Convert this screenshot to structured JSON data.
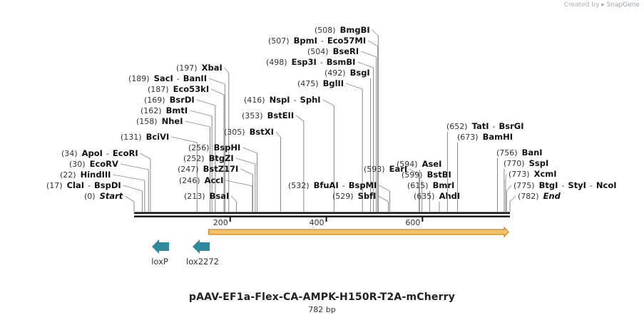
{
  "credit": {
    "prefix": "Created by",
    "brand": "SnapGene"
  },
  "map": {
    "title": "pAAV-EF1a-Flex-CA-AMPK-H150R-T2A-mCherry",
    "length_label": "782 bp",
    "length_bp": 782,
    "scale_ticks": [
      "200",
      "400",
      "600"
    ],
    "colors": {
      "arrow_fill": "#f5c26b",
      "arrow_stroke": "#c48a1c",
      "feature": "#2e8a9a",
      "line": "#888888",
      "backbone": "#111111"
    }
  },
  "sites": [
    {
      "pos_label": "(0)",
      "names": [
        "Start"
      ],
      "pos": 0,
      "italic": true
    },
    {
      "pos_label": "(17)",
      "names": [
        "ClaI",
        "BspDI"
      ],
      "pos": 17
    },
    {
      "pos_label": "(22)",
      "names": [
        "HindIII"
      ],
      "pos": 22
    },
    {
      "pos_label": "(30)",
      "names": [
        "EcoRV"
      ],
      "pos": 30
    },
    {
      "pos_label": "(34)",
      "names": [
        "ApoI",
        "EcoRI"
      ],
      "pos": 34
    },
    {
      "pos_label": "(131)",
      "names": [
        "BciVI"
      ],
      "pos": 131
    },
    {
      "pos_label": "(158)",
      "names": [
        "NheI"
      ],
      "pos": 158
    },
    {
      "pos_label": "(162)",
      "names": [
        "BmtI"
      ],
      "pos": 162
    },
    {
      "pos_label": "(169)",
      "names": [
        "BsrDI"
      ],
      "pos": 169
    },
    {
      "pos_label": "(187)",
      "names": [
        "Eco53kI"
      ],
      "pos": 187
    },
    {
      "pos_label": "(189)",
      "names": [
        "SacI",
        "BanII"
      ],
      "pos": 189
    },
    {
      "pos_label": "(197)",
      "names": [
        "XbaI"
      ],
      "pos": 197
    },
    {
      "pos_label": "(213)",
      "names": [
        "BsaI"
      ],
      "pos": 213
    },
    {
      "pos_label": "(246)",
      "names": [
        "AccI"
      ],
      "pos": 246
    },
    {
      "pos_label": "(247)",
      "names": [
        "BstZ17I"
      ],
      "pos": 247
    },
    {
      "pos_label": "(252)",
      "names": [
        "BtgZI"
      ],
      "pos": 252
    },
    {
      "pos_label": "(256)",
      "names": [
        "BspHI"
      ],
      "pos": 256
    },
    {
      "pos_label": "(305)",
      "names": [
        "BstXI"
      ],
      "pos": 305
    },
    {
      "pos_label": "(353)",
      "names": [
        "BstEII"
      ],
      "pos": 353
    },
    {
      "pos_label": "(416)",
      "names": [
        "NspI",
        "SphI"
      ],
      "pos": 416
    },
    {
      "pos_label": "(475)",
      "names": [
        "BglII"
      ],
      "pos": 475
    },
    {
      "pos_label": "(492)",
      "names": [
        "BsgI"
      ],
      "pos": 492
    },
    {
      "pos_label": "(498)",
      "names": [
        "Esp3I",
        "BsmBI"
      ],
      "pos": 498
    },
    {
      "pos_label": "(504)",
      "names": [
        "BseRI"
      ],
      "pos": 504
    },
    {
      "pos_label": "(507)",
      "names": [
        "BpmI",
        "Eco57MI"
      ],
      "pos": 507
    },
    {
      "pos_label": "(508)",
      "names": [
        "BmgBI"
      ],
      "pos": 508
    },
    {
      "pos_label": "(529)",
      "names": [
        "SbfI"
      ],
      "pos": 529
    },
    {
      "pos_label": "(532)",
      "names": [
        "BfuAI",
        "BspMI"
      ],
      "pos": 532
    },
    {
      "pos_label": "(593)",
      "names": [
        "EarI"
      ],
      "pos": 593
    },
    {
      "pos_label": "(594)",
      "names": [
        "AseI"
      ],
      "pos": 594
    },
    {
      "pos_label": "(599)",
      "names": [
        "BstBI"
      ],
      "pos": 599
    },
    {
      "pos_label": "(615)",
      "names": [
        "BmrI"
      ],
      "pos": 615
    },
    {
      "pos_label": "(635)",
      "names": [
        "AhdI"
      ],
      "pos": 635
    },
    {
      "pos_label": "(652)",
      "names": [
        "TatI",
        "BsrGI"
      ],
      "pos": 652
    },
    {
      "pos_label": "(673)",
      "names": [
        "BamHI"
      ],
      "pos": 673
    },
    {
      "pos_label": "(756)",
      "names": [
        "BanI"
      ],
      "pos": 756
    },
    {
      "pos_label": "(770)",
      "names": [
        "SspI"
      ],
      "pos": 770
    },
    {
      "pos_label": "(773)",
      "names": [
        "XcmI"
      ],
      "pos": 773
    },
    {
      "pos_label": "(775)",
      "names": [
        "BtgI",
        "StyI",
        "NcoI"
      ],
      "pos": 775
    },
    {
      "pos_label": "(782)",
      "names": [
        "End"
      ],
      "pos": 782,
      "italic": true
    }
  ],
  "features": [
    {
      "name": "loxP",
      "direction": "reverse"
    },
    {
      "name": "lox2272",
      "direction": "reverse"
    }
  ],
  "orf": {
    "direction": "forward",
    "start_bp": 155,
    "end_bp": 782
  }
}
